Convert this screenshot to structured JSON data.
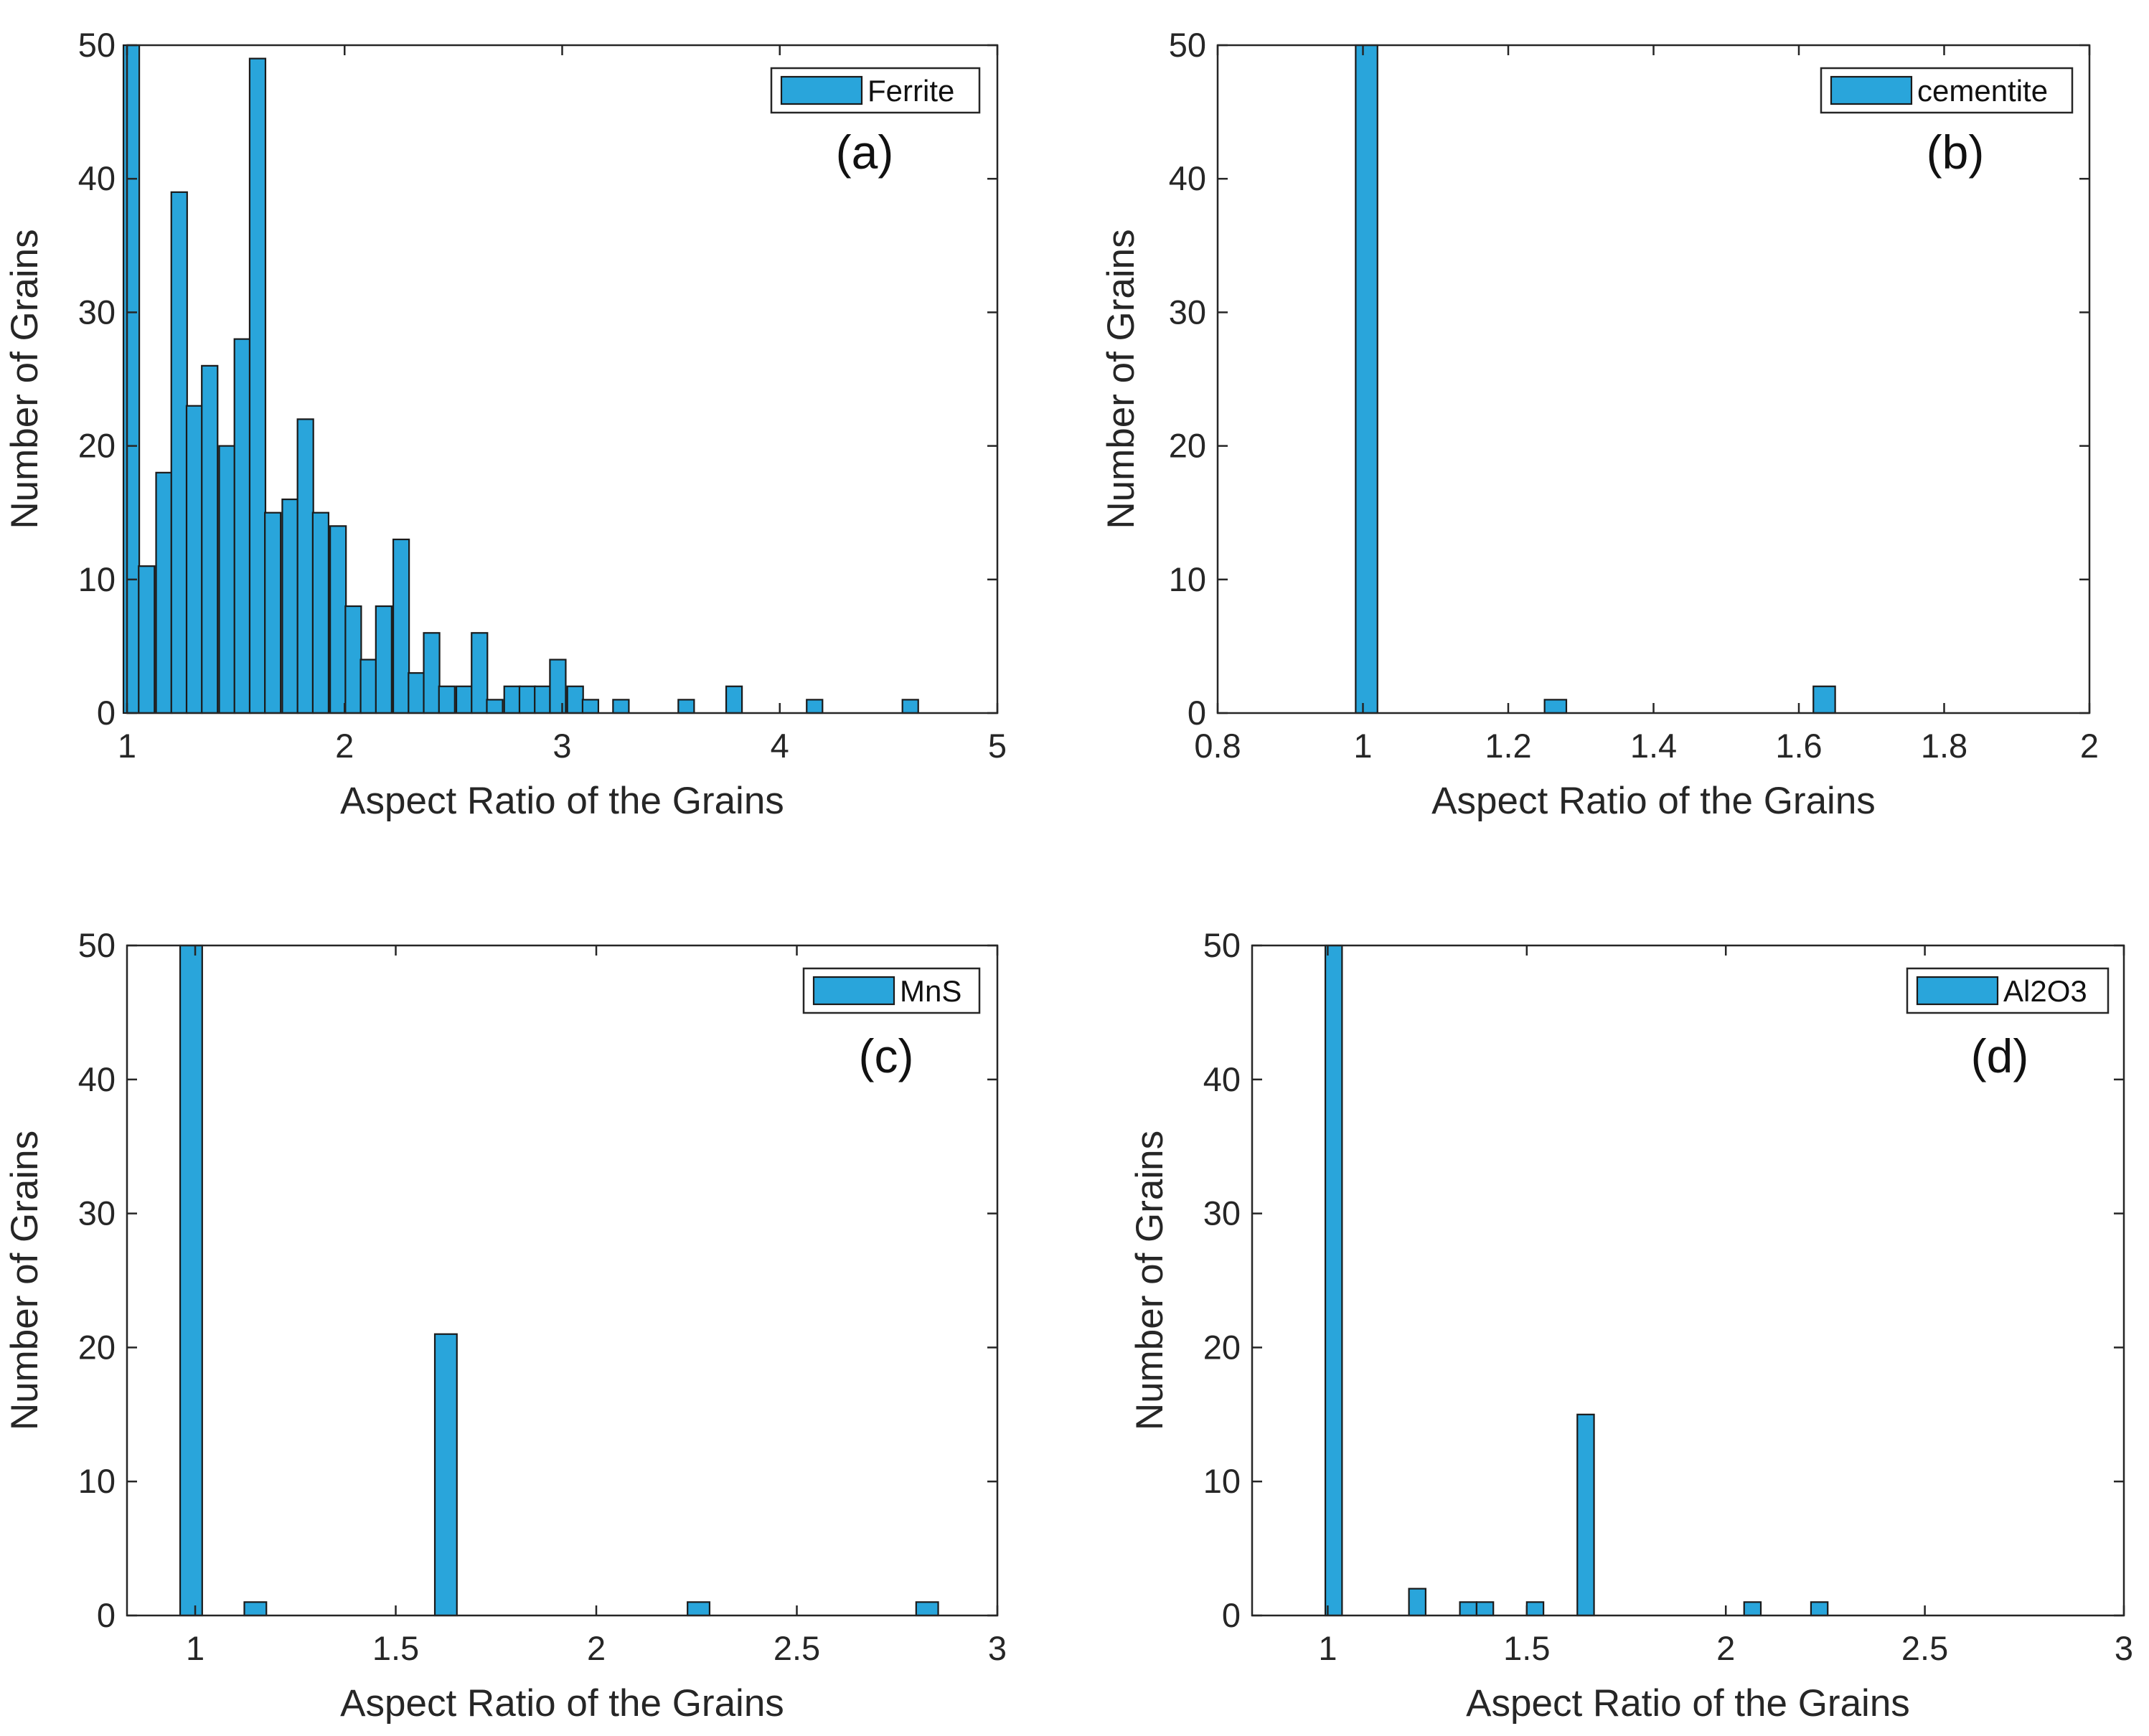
{
  "figure": {
    "bar_color": "#29A5DB",
    "edge_color": "#1a1a1a"
  },
  "chart_data": [
    {
      "type": "bar",
      "panel": "(a)",
      "legend": "Ferrite",
      "legend_placement": "top-right",
      "xlabel": "Aspect Ratio of the Grains",
      "ylabel": "Number of Grains",
      "xlim": [
        1,
        5
      ],
      "ylim": [
        0,
        50
      ],
      "xticks": [
        1,
        2,
        3,
        4,
        5
      ],
      "yticks": [
        0,
        10,
        20,
        30,
        40,
        50
      ],
      "bin_width": 0.0727,
      "bin_centers": [
        1.02,
        1.09,
        1.17,
        1.24,
        1.31,
        1.38,
        1.46,
        1.53,
        1.6,
        1.67,
        1.75,
        1.82,
        1.89,
        1.97,
        2.04,
        2.11,
        2.18,
        2.26,
        2.33,
        2.4,
        2.47,
        2.55,
        2.62,
        2.69,
        2.77,
        2.84,
        2.91,
        2.98,
        3.06,
        3.13,
        3.27,
        3.57,
        3.79,
        4.16,
        4.6
      ],
      "counts": [
        50,
        11,
        18,
        39,
        23,
        26,
        20,
        28,
        49,
        15,
        16,
        22,
        15,
        14,
        8,
        4,
        8,
        13,
        3,
        6,
        2,
        2,
        6,
        1,
        2,
        2,
        2,
        4,
        2,
        1,
        1,
        1,
        2,
        1,
        1
      ]
    },
    {
      "type": "bar",
      "panel": "(b)",
      "legend": "cementite",
      "legend_placement": "top-right",
      "xlabel": "Aspect Ratio of the Grains",
      "ylabel": "Number of Grains",
      "xlim": [
        0.8,
        2
      ],
      "ylim": [
        0,
        50
      ],
      "xticks": [
        0.8,
        1,
        1.2,
        1.4,
        1.6,
        1.8,
        2
      ],
      "yticks": [
        0,
        10,
        20,
        30,
        40,
        50
      ],
      "bin_width": 0.03,
      "bin_centers": [
        1.005,
        1.265,
        1.635
      ],
      "counts": [
        50,
        1,
        2
      ]
    },
    {
      "type": "bar",
      "panel": "(c)",
      "legend": "MnS",
      "legend_placement": "top-right",
      "xlabel": "Aspect Ratio of the Grains",
      "ylabel": "Number of Grains",
      "xlim": [
        0.83,
        3
      ],
      "ylim": [
        0,
        50
      ],
      "xticks": [
        1,
        1.5,
        2,
        2.5,
        3
      ],
      "yticks": [
        0,
        10,
        20,
        30,
        40,
        50
      ],
      "bin_width": 0.055,
      "bin_centers": [
        0.99,
        1.15,
        1.625,
        2.255,
        2.825
      ],
      "counts": [
        50,
        1,
        21,
        1,
        1
      ]
    },
    {
      "type": "bar",
      "panel": "(d)",
      "legend": "Al2O3",
      "legend_placement": "top-right",
      "xlabel": "Aspect Ratio of the Grains",
      "ylabel": "Number of Grains",
      "xlim": [
        0.81,
        3
      ],
      "ylim": [
        0,
        50
      ],
      "xticks": [
        1,
        1.5,
        2,
        2.5,
        3
      ],
      "yticks": [
        0,
        10,
        20,
        30,
        40,
        50
      ],
      "bin_width": 0.042,
      "bin_centers": [
        1.015,
        1.225,
        1.353,
        1.395,
        1.521,
        1.648,
        2.067,
        2.235
      ],
      "counts": [
        50,
        2,
        1,
        1,
        1,
        15,
        1,
        1
      ]
    }
  ]
}
